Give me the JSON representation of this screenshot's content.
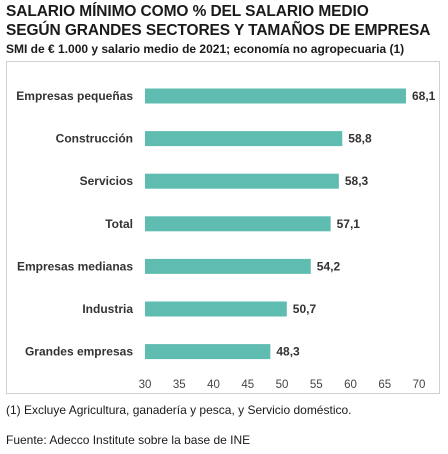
{
  "title_line1": "SALARIO MÍNIMO COMO % DEL SALARIO MEDIO",
  "title_line2": "SEGÚN GRANDES SECTORES Y TAMAÑOS DE EMPRESA",
  "subtitle": "SMI de € 1.000 y salario medio de 2021; economía no agropecuaria (1)",
  "footnote": "(1) Excluye Agricultura, ganadería y pesca, y Servicio doméstico.",
  "source": "Fuente: Adecco Institute sobre la base de INE",
  "chart_data": {
    "type": "bar",
    "orientation": "horizontal",
    "categories": [
      "Empresas pequeñas",
      "Construcción",
      "Servicios",
      "Total",
      "Empresas medianas",
      "Industria",
      "Grandes empresas"
    ],
    "values": [
      68.1,
      58.8,
      58.3,
      57.1,
      54.2,
      50.7,
      48.3
    ],
    "value_labels": [
      "68,1",
      "58,8",
      "58,3",
      "57,1",
      "54,2",
      "50,7",
      "48,3"
    ],
    "xlim": [
      30,
      70
    ],
    "xticks": [
      30,
      35,
      40,
      45,
      50,
      55,
      60,
      65,
      70
    ],
    "grid": false,
    "legend": "none",
    "bar_color": "#5fbcb0"
  }
}
